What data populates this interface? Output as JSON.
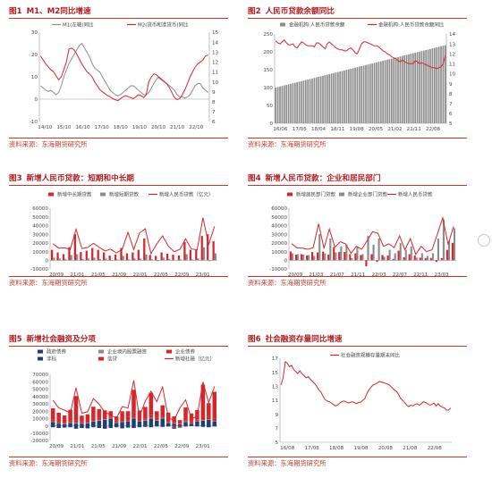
{
  "source_label": "资料来源：东海期货研究所",
  "panels": [
    {
      "num": "图1",
      "title": "M1、M2同比增速"
    },
    {
      "num": "图2",
      "title": "人民币贷款余额同比"
    },
    {
      "num": "图3",
      "title": "新增人民币贷款：短期和中长期"
    },
    {
      "num": "图4",
      "title": "新增人民币贷款：企业和居民部门"
    },
    {
      "num": "图5",
      "title": "新增社会融资及分项"
    },
    {
      "num": "图6",
      "title": "社会融资存量同比增速"
    }
  ],
  "colors": {
    "red": "#d6262b",
    "gray": "#8c8c8c",
    "darkgray": "#6e6e6e",
    "navy": "#1f3f73",
    "title": "#b0191e"
  },
  "chart_data": [
    {
      "type": "line",
      "x_ticks": [
        "14/10",
        "15/10",
        "16/10",
        "17/10",
        "18/10",
        "19/10",
        "20/10",
        "21/10",
        "22/10"
      ],
      "ylim": [
        -10,
        30
      ],
      "y_ticks": [
        -10,
        0,
        10,
        20,
        30
      ],
      "y2lim": [
        6,
        15
      ],
      "y2_ticks": [
        6,
        7,
        8,
        9,
        10,
        11,
        12,
        13,
        14,
        15
      ],
      "series": [
        {
          "name": "M1(左轴)同比",
          "axis": "left",
          "color": "#8c8c8c",
          "values": [
            6,
            5,
            4,
            3.5,
            4,
            3,
            2,
            3,
            6,
            10,
            13,
            16,
            18,
            20,
            22,
            24,
            25,
            23,
            21,
            19,
            16,
            14,
            13,
            12,
            10,
            8,
            6,
            4,
            3,
            2,
            1.5,
            2,
            3,
            4,
            5,
            6,
            6,
            5,
            4,
            3,
            2,
            2,
            3,
            5,
            7,
            9,
            10,
            9,
            8,
            7,
            6,
            5,
            4,
            2,
            1,
            1,
            0.5,
            1,
            2,
            4,
            6,
            7,
            7,
            5,
            4,
            3
          ]
        },
        {
          "name": "M2(货币和准货币)同比",
          "axis": "right",
          "color": "#d6262b",
          "values": [
            12.6,
            12.2,
            11.8,
            11.5,
            11.2,
            11,
            10.6,
            10.2,
            10.5,
            11.2,
            12,
            13.3,
            13.4,
            13.2,
            12.8,
            12.3,
            11.8,
            11.4,
            11,
            10.8,
            10.5,
            10,
            9.6,
            9.2,
            9,
            8.8,
            8.6,
            8.5,
            8.3,
            8.2,
            8.1,
            8.3,
            8.5,
            8.6,
            8.5,
            8.4,
            8.3,
            8.5,
            8.7,
            8.6,
            8.4,
            8.7,
            10,
            10.5,
            10.8,
            10.7,
            10.4,
            10.2,
            10,
            9.8,
            9.4,
            8.9,
            8.4,
            8.2,
            8.3,
            8.7,
            9.2,
            9.8,
            10.5,
            11,
            11.5,
            11.8,
            12,
            12.2,
            12.6,
            12.7
          ]
        }
      ]
    },
    {
      "type": "bar",
      "x_ticks": [
        "16/06",
        "17/05",
        "18/04",
        "18/11",
        "19/08",
        "20/05",
        "21/02",
        "21/11",
        "22/08"
      ],
      "ylim": [
        0,
        250
      ],
      "y_ticks": [
        0,
        50,
        100,
        150,
        200,
        250
      ],
      "y2lim": [
        5,
        14
      ],
      "y2_ticks": [
        5,
        6,
        7,
        8,
        9,
        10,
        11,
        12,
        13,
        14
      ],
      "series": [
        {
          "name": "金融机构:人民币贷款余额",
          "axis": "left",
          "type": "bar",
          "color": "#8c8c8c",
          "values": [
            100,
            101.5,
            103,
            104.5,
            106,
            107.5,
            109,
            110.5,
            112,
            113.5,
            115,
            116.5,
            118,
            119.5,
            121,
            122.5,
            124,
            125.5,
            127,
            128.5,
            130,
            131.5,
            133,
            134.5,
            136,
            137.5,
            139,
            140.5,
            142,
            143.5,
            145,
            146.5,
            148,
            149.5,
            151,
            152.5,
            154,
            155.5,
            157,
            158.5,
            160,
            161.5,
            163,
            164.5,
            166,
            167.5,
            169,
            170.5,
            172,
            173.5,
            175,
            176.5,
            178,
            179.5,
            181,
            182.5,
            184,
            185.5,
            187,
            188.5,
            190,
            191.5,
            193,
            194.5,
            196,
            197.5,
            199,
            200.5,
            202,
            203.5,
            205,
            206.5,
            208,
            209.5,
            211,
            212.5,
            214,
            215.5,
            217,
            218.5
          ]
        },
        {
          "name": "金融机构:人民币贷款余额同比",
          "axis": "right",
          "type": "line",
          "color": "#d6262b",
          "values": [
            13.3,
            13.1,
            13,
            13.2,
            13.4,
            13.1,
            12.9,
            12.9,
            13,
            12.7,
            12.6,
            12.9,
            13.2,
            13.1,
            12.9,
            12.8,
            12.8,
            12.8,
            12.7,
            13.1,
            13.1,
            12.9,
            12.7,
            12.5,
            13,
            13.2,
            13,
            12.8,
            12.6,
            12.5,
            12.4,
            12.4,
            12.3,
            12.3,
            12.5,
            12.6,
            12.4,
            12.1,
            12,
            12.5,
            13,
            13.2,
            13.2,
            13.1,
            13,
            12.9,
            12.8,
            12.8,
            12.7,
            12.5,
            12.3,
            12.2,
            12,
            11.9,
            11.7,
            11.6,
            11.5,
            11.3,
            11.2,
            11.4,
            11.2,
            11.1,
            11,
            11,
            11,
            11.3,
            11.2,
            11,
            11.1,
            11,
            10.9,
            10.8,
            10.7,
            10.6,
            10.6,
            10.5,
            10.6,
            10.7,
            11,
            11.8
          ]
        }
      ]
    },
    {
      "type": "bar",
      "x_ticks": [
        "20/09",
        "21/01",
        "21/05",
        "21/09",
        "22/01",
        "22/05",
        "22/09",
        "23/01"
      ],
      "ylim": [
        -10000,
        60000
      ],
      "y_ticks": [
        -10000,
        0,
        10000,
        20000,
        30000,
        40000,
        50000,
        60000
      ],
      "series": [
        {
          "name": "新增中长期贷款",
          "type": "bar",
          "color": "#d6262b",
          "values": [
            12000,
            9000,
            7000,
            15000,
            30000,
            9500,
            11000,
            14000,
            12000,
            9000,
            5500,
            6500,
            14000,
            8000,
            9000,
            12000,
            25000,
            6000,
            5000,
            9000,
            7500,
            6500,
            5500,
            21000,
            12000,
            12000,
            28000,
            30000,
            22000
          ]
        },
        {
          "name": "新增短期贷款",
          "type": "bar",
          "color": "#8c8c8c",
          "values": [
            3000,
            2000,
            1500,
            6000,
            7000,
            1500,
            2000,
            3000,
            1500,
            2000,
            -500,
            1000,
            5000,
            1000,
            2000,
            2000,
            6500,
            1000,
            -1000,
            3000,
            1500,
            500,
            1000,
            7000,
            1000,
            2000,
            15000,
            -1000,
            8000
          ]
        },
        {
          "name": "新增人民币贷款（亿元）",
          "type": "line",
          "color": "#d6262b",
          "values": [
            19000,
            14000,
            14300,
            12600,
            35800,
            13600,
            14700,
            19500,
            15000,
            10800,
            12700,
            8300,
            12600,
            32100,
            12300,
            31300,
            36300,
            7500,
            18900,
            28100,
            16200,
            9900,
            12500,
            24700,
            13000,
            12100,
            49000,
            18100,
            39000
          ]
        }
      ]
    },
    {
      "type": "bar",
      "x_ticks": [
        "20/09",
        "21/03",
        "21/07",
        "21/11",
        "22/03",
        "22/07",
        "22/11",
        "23/03"
      ],
      "ylim": [
        -10000,
        60000
      ],
      "y_ticks": [
        -10000,
        0,
        10000,
        20000,
        30000,
        40000,
        50000,
        60000
      ],
      "series": [
        {
          "name": "新增居民部门贷款",
          "type": "bar",
          "color": "#d6262b",
          "values": [
            10000,
            6500,
            7000,
            5500,
            9500,
            9000,
            10000,
            6500,
            15000,
            9700,
            9500,
            7000,
            8000,
            6000,
            -7000,
            7000,
            -2000,
            6000,
            5500,
            1500,
            11000,
            3500,
            7000,
            5500,
            3000,
            2500,
            2600,
            -2000,
            2500,
            12000,
            20000
          ]
        },
        {
          "name": "新增企业部门贷款",
          "type": "bar",
          "color": "#8c8c8c",
          "values": [
            8000,
            7000,
            6500,
            6000,
            5000,
            30000,
            8000,
            25000,
            9000,
            16000,
            18000,
            2500,
            15000,
            7000,
            28000,
            18000,
            25000,
            4000,
            12000,
            8000,
            20000,
            12000,
            16000,
            3000,
            8000,
            5000,
            8000,
            25000,
            47000,
            22000,
            37000
          ]
        },
        {
          "name": "新增人民币贷款",
          "type": "line",
          "color": "#d6262b",
          "values": [
            19000,
            14300,
            14000,
            12600,
            14500,
            42000,
            13600,
            36000,
            15000,
            21200,
            18900,
            8000,
            16000,
            12600,
            22500,
            32800,
            31000,
            16000,
            18900,
            14600,
            28100,
            12000,
            25000,
            6800,
            16000,
            10000,
            12000,
            30000,
            49000,
            18100,
            39000
          ]
        }
      ]
    },
    {
      "type": "bar",
      "x_ticks": [
        "20/09",
        "21/01",
        "21/05",
        "21/09",
        "22/01",
        "22/05",
        "22/09",
        "23/01"
      ],
      "ylim": [
        -20000,
        70000
      ],
      "y_ticks": [
        -20000,
        -10000,
        0,
        10000,
        20000,
        30000,
        40000,
        50000,
        60000,
        70000
      ],
      "series": [
        {
          "name": "政府债券",
          "type": "bar",
          "color": "#1f3f73",
          "values": [
            5000,
            3000,
            2000,
            4000,
            3000,
            3000,
            3500,
            6000,
            7000,
            8000,
            10000,
            4000,
            5000,
            6000,
            10000,
            6000,
            7000,
            10000,
            7000,
            10000,
            4000,
            3000,
            2000,
            5000,
            3000,
            6000,
            7000,
            8000,
            6000
          ]
        },
        {
          "name": "企业境内股票融资",
          "type": "bar",
          "color": "#8c8c8c",
          "values": [
            800,
            700,
            600,
            900,
            1000,
            800,
            700,
            900,
            800,
            1000,
            900,
            700,
            800,
            900,
            1000,
            800,
            700,
            900,
            800,
            900,
            1000,
            800,
            700,
            900,
            800,
            900,
            1000,
            800,
            700
          ]
        },
        {
          "name": "企业债券",
          "type": "bar",
          "color": "#d6262b",
          "values": [
            3000,
            2000,
            1500,
            3000,
            3500,
            2000,
            2500,
            4000,
            3000,
            2000,
            1000,
            3000,
            4000,
            5000,
            6000,
            3000,
            2000,
            4000,
            3000,
            2000,
            1000,
            -2000,
            -1000,
            1000,
            2000,
            1500,
            3000,
            4000,
            3500
          ]
        },
        {
          "name": "非标",
          "type": "bar",
          "color": "#1f3f73",
          "values": [
            -2000,
            -3000,
            -2500,
            -2000,
            -4000,
            -3000,
            -3500,
            -2000,
            -3000,
            -4000,
            -3000,
            -2000,
            -3500,
            -2500,
            -3000,
            -2000,
            -1500,
            -2000,
            -1000,
            -1500,
            -1000,
            -2000,
            -1500,
            -1000,
            -500,
            -1000,
            -1500,
            -2000,
            -1000
          ]
        },
        {
          "name": "信贷",
          "type": "bar",
          "color": "#d6262b",
          "values": [
            15000,
            12000,
            10000,
            14000,
            33000,
            8000,
            9000,
            15000,
            12000,
            10000,
            8000,
            5000,
            10000,
            8000,
            32000,
            11000,
            16000,
            30000,
            9000,
            15000,
            12000,
            9000,
            5000,
            18000,
            11000,
            13000,
            45000,
            18000,
            36000
          ]
        },
        {
          "name": "新增社融（亿元）",
          "type": "line",
          "color": "#d6262b",
          "values": [
            34800,
            24300,
            21300,
            17200,
            51700,
            17100,
            19000,
            37000,
            29300,
            18500,
            14800,
            10300,
            26100,
            24200,
            61700,
            12200,
            33500,
            47000,
            32800,
            52700,
            10800,
            7600,
            24400,
            35300,
            9100,
            13100,
            59800,
            31600,
            53600
          ]
        }
      ]
    },
    {
      "type": "line",
      "x_ticks": [
        "16/08",
        "17/08",
        "18/08",
        "19/08",
        "20/08",
        "21/08",
        "22/08"
      ],
      "ylim": [
        5,
        17
      ],
      "y_ticks": [
        5,
        7,
        9,
        11,
        13,
        15,
        17
      ],
      "series": [
        {
          "name": "社会融资规模存量期末同比",
          "color": "#d6262b",
          "values": [
            13.2,
            14.2,
            16.5,
            16.3,
            15.8,
            16,
            15.4,
            15.1,
            14.8,
            15.2,
            14.8,
            14.5,
            14.2,
            14.4,
            14,
            13.7,
            13.4,
            13,
            12.5,
            12.2,
            11.6,
            11.1,
            10.9,
            10.8,
            10.6,
            10.4,
            10.2,
            10.3,
            10.6,
            10.8,
            10.9,
            10.8,
            10.6,
            10.7,
            10.8,
            10.7,
            10.5,
            10.7,
            10.7,
            11,
            11.2,
            12,
            12.5,
            12.9,
            13.2,
            13.3,
            13.5,
            13.7,
            13.6,
            13.5,
            13.4,
            13.3,
            13.1,
            12.8,
            12.5,
            12.3,
            11.9,
            11.3,
            11,
            10.7,
            10.3,
            10.1,
            10.3,
            10.2,
            10.4,
            10.5,
            10.3,
            10.5,
            10.8,
            10.7,
            10.5,
            10.3,
            10.4,
            10.6,
            10.2,
            10.5,
            10.2,
            10,
            9.9,
            9.6,
            9.6,
            9.9
          ]
        }
      ]
    }
  ]
}
